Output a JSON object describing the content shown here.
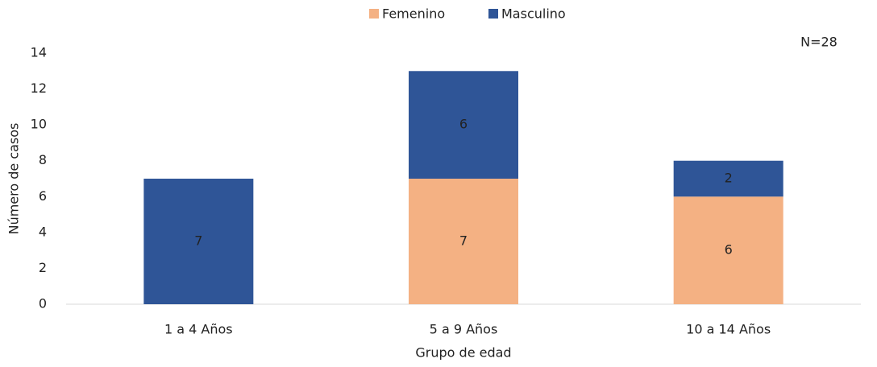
{
  "chart_data": {
    "type": "stacked_bar",
    "categories": [
      "1 a 4 Años",
      "5 a 9 Años",
      "10 a 14 Años"
    ],
    "series": [
      {
        "name": "Femenino",
        "color": "#f4b183",
        "values": [
          0,
          7,
          6
        ]
      },
      {
        "name": "Masculino",
        "color": "#2f5597",
        "values": [
          7,
          6,
          2
        ]
      }
    ],
    "ylim": [
      0,
      14
    ],
    "yticks": [
      0,
      2,
      4,
      6,
      8,
      10,
      12,
      14
    ],
    "x_label": "Grupo de edad",
    "y_label": "Número de casos",
    "annotation": "N=28",
    "legend": "top",
    "grid": false
  }
}
